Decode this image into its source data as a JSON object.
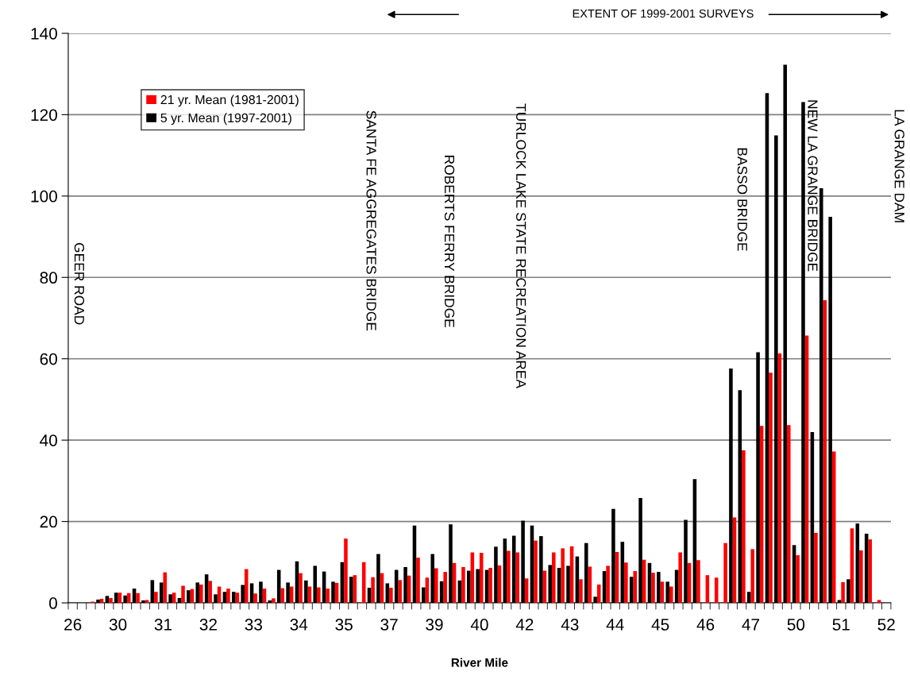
{
  "chart_data": {
    "type": "bar",
    "xlabel": "River Mile",
    "categories": [
      "26",
      null,
      null,
      null,
      null,
      "30",
      null,
      null,
      null,
      null,
      "31",
      null,
      null,
      null,
      null,
      "32",
      null,
      null,
      null,
      null,
      "33",
      null,
      null,
      null,
      null,
      "34",
      null,
      null,
      null,
      null,
      "35",
      null,
      null,
      null,
      null,
      "37",
      null,
      null,
      null,
      null,
      "39",
      null,
      null,
      null,
      null,
      "40",
      null,
      null,
      null,
      null,
      "42",
      null,
      null,
      null,
      null,
      "43",
      null,
      null,
      null,
      null,
      "44",
      null,
      null,
      null,
      null,
      "45",
      null,
      null,
      null,
      null,
      "46",
      null,
      null,
      null,
      null,
      "47",
      null,
      null,
      null,
      null,
      "50",
      null,
      null,
      null,
      null,
      "51",
      null,
      null,
      null,
      null,
      "52"
    ],
    "series": [
      {
        "name": "21 yr. Mean (1981-2001)",
        "color": "#ff0000",
        "values": [
          null,
          null,
          0.3,
          1.0,
          1.2,
          2.5,
          2.4,
          2.4,
          0.7,
          2.7,
          7.5,
          2.5,
          4.2,
          3.4,
          4.5,
          5.4,
          4.0,
          3.5,
          2.5,
          8.3,
          2.3,
          3.5,
          1.1,
          3.6,
          4.0,
          7.3,
          4.0,
          3.8,
          3.5,
          4.9,
          15.8,
          6.8,
          10.0,
          6.3,
          7.3,
          3.7,
          5.6,
          6.7,
          11.1,
          6.2,
          8.5,
          7.6,
          9.8,
          8.8,
          12.4,
          12.3,
          8.6,
          9.2,
          12.8,
          12.4,
          6.0,
          15.3,
          7.9,
          12.4,
          13.4,
          13.9,
          5.8,
          8.9,
          4.5,
          9.1,
          12.5,
          9.9,
          7.8,
          10.6,
          7.4,
          5.2,
          4.0,
          12.4,
          9.8,
          10.5,
          6.8,
          6.2,
          14.7,
          21.0,
          37.5,
          13.2,
          43.5,
          56.6,
          61.3,
          43.7,
          11.7,
          65.7,
          17.2,
          74.4,
          37.2,
          5.1,
          18.3,
          12.9,
          15.6,
          0.7,
          null
        ]
      },
      {
        "name": "5 yr. Mean (1997-2001)",
        "color": "#000000",
        "values": [
          null,
          null,
          null,
          0.8,
          1.7,
          2.5,
          1.8,
          3.5,
          0.6,
          5.6,
          5.0,
          2.1,
          1.2,
          3.1,
          5.0,
          7.0,
          2.1,
          2.7,
          2.7,
          4.4,
          4.8,
          5.2,
          0.6,
          8.1,
          5.0,
          10.2,
          5.5,
          9.1,
          7.7,
          5.2,
          10.0,
          6.4,
          null,
          3.7,
          12.0,
          4.8,
          8.1,
          8.8,
          19.0,
          3.8,
          12.0,
          5.3,
          19.3,
          5.5,
          7.9,
          8.3,
          8.1,
          13.8,
          15.8,
          16.5,
          20.2,
          19.0,
          16.4,
          9.3,
          8.6,
          9.1,
          11.4,
          14.7,
          1.5,
          7.8,
          23.1,
          15.0,
          6.4,
          25.8,
          9.8,
          7.6,
          5.2,
          8.1,
          20.4,
          30.4,
          null,
          null,
          null,
          57.6,
          52.3,
          2.7,
          61.6,
          125.3,
          114.9,
          132.3,
          14.2,
          123.1,
          42.0,
          101.9,
          94.9,
          0.7,
          5.8,
          19.5,
          17.0,
          null,
          null
        ]
      }
    ],
    "ylim": [
      0,
      140
    ],
    "yticks": [
      0,
      20,
      40,
      60,
      80,
      100,
      120,
      140
    ],
    "grid": "y",
    "legend": "top left",
    "annotations": [
      "GEER ROAD",
      "SANTA FE AGGREGATES BRIDGE",
      "ROBERTS FERRY BRIDGE",
      "TURLOCK LAKE STATE RECREATION AREA",
      "BASSO BRIDGE",
      "NEW LA GRANGE BRIDGE",
      "LA GRANGE DAM",
      "EXTENT OF 1999-2001 SURVEYS"
    ]
  }
}
